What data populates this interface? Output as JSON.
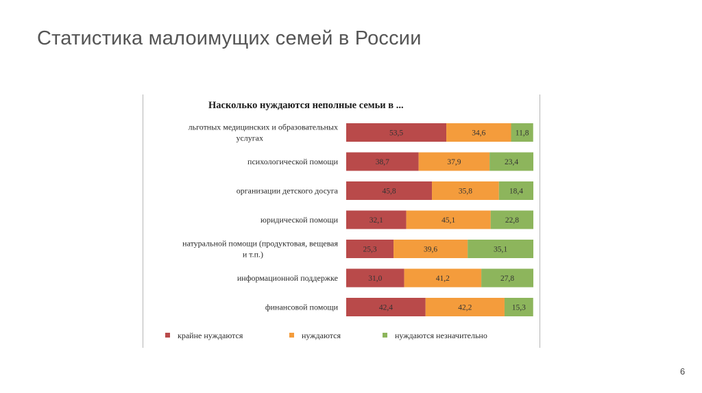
{
  "slide": {
    "title": "Статистика малоимущих семей в России",
    "page_number": "6"
  },
  "colors": {
    "red": "#b94a4a",
    "orange": "#f49c3c",
    "green": "#8db55c"
  },
  "chart_data": {
    "type": "bar",
    "stacked": true,
    "orientation": "horizontal",
    "title": "Насколько нуждаются неполные семьи в ...",
    "categories": [
      [
        "льготных медицинских и образовательных",
        "услугах"
      ],
      [
        "психологической помощи"
      ],
      [
        "организации детского досуга"
      ],
      [
        "юридической помощи"
      ],
      [
        "натуральной помощи (продуктовая, вещевая",
        "и т.п.)"
      ],
      [
        "информационной поддержке"
      ],
      [
        "финансовой помощи"
      ]
    ],
    "series": [
      {
        "name": "крайне нуждаются",
        "color": "#b94a4a",
        "values": [
          53.5,
          38.7,
          45.8,
          32.1,
          25.3,
          31.0,
          42.4
        ],
        "labels": [
          "53,5",
          "38,7",
          "45,8",
          "32,1",
          "25,3",
          "31,0",
          "42,4"
        ]
      },
      {
        "name": "нуждаются",
        "color": "#f49c3c",
        "values": [
          34.6,
          37.9,
          35.8,
          45.1,
          39.6,
          41.2,
          42.2
        ],
        "labels": [
          "34,6",
          "37,9",
          "35,8",
          "45,1",
          "39,6",
          "41,2",
          "42,2"
        ]
      },
      {
        "name": "нуждаются незначительно",
        "color": "#8db55c",
        "values": [
          11.8,
          23.4,
          18.4,
          22.8,
          35.1,
          27.8,
          15.3
        ],
        "labels": [
          "11,8",
          "23,4",
          "18,4",
          "22,8",
          "35,1",
          "27,8",
          "15,3"
        ]
      }
    ],
    "xlim": [
      0,
      100
    ],
    "legend_position": "bottom"
  }
}
